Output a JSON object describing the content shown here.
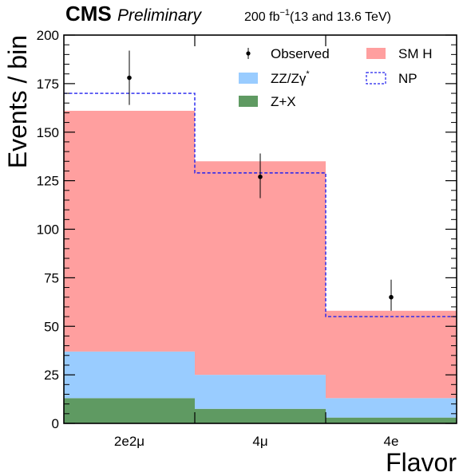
{
  "header": {
    "experiment": "CMS",
    "status": "Preliminary",
    "lumi_value": "200 fb",
    "lumi_exp": "−1",
    "lumi_energy": "(13 and 13.6 TeV)"
  },
  "colors": {
    "zx": "#5f9a62",
    "zz": "#99ccff",
    "smh": "#ff9f9f",
    "np": "#2020ee",
    "observed": "#000000"
  },
  "chart_data": {
    "type": "bar",
    "stacked": true,
    "categories": [
      "2e2μ",
      "4μ",
      "4e"
    ],
    "xlabel": "Flavor",
    "ylabel": "Events / bin",
    "ylim": [
      0,
      200
    ],
    "y_ticks": [
      0,
      25,
      50,
      75,
      100,
      125,
      150,
      175,
      200
    ],
    "series": [
      {
        "name": "Z+X",
        "key": "zx",
        "values": [
          13,
          7.5,
          3
        ]
      },
      {
        "name": "ZZ/Zγ*",
        "key": "zz",
        "values": [
          24,
          17.5,
          10
        ]
      },
      {
        "name": "SM H",
        "key": "smh",
        "values": [
          124,
          110,
          45
        ]
      }
    ],
    "np": {
      "name": "NP",
      "values": [
        170,
        129,
        55
      ]
    },
    "observed": {
      "name": "Observed",
      "values": [
        178,
        127,
        65
      ],
      "err_low": [
        14,
        11,
        7
      ],
      "err_high": [
        14,
        12,
        9
      ]
    },
    "legend": {
      "placement": "top-right",
      "items": [
        {
          "label": "Observed",
          "key": "observed",
          "kind": "point"
        },
        {
          "label": "SM H",
          "key": "smh",
          "kind": "fill"
        },
        {
          "label": "ZZ/Zγ",
          "sup": "*",
          "key": "zz",
          "kind": "fill"
        },
        {
          "label": "NP",
          "key": "np",
          "kind": "dashed"
        },
        {
          "label": "Z+X",
          "key": "zx",
          "kind": "fill"
        }
      ]
    }
  }
}
